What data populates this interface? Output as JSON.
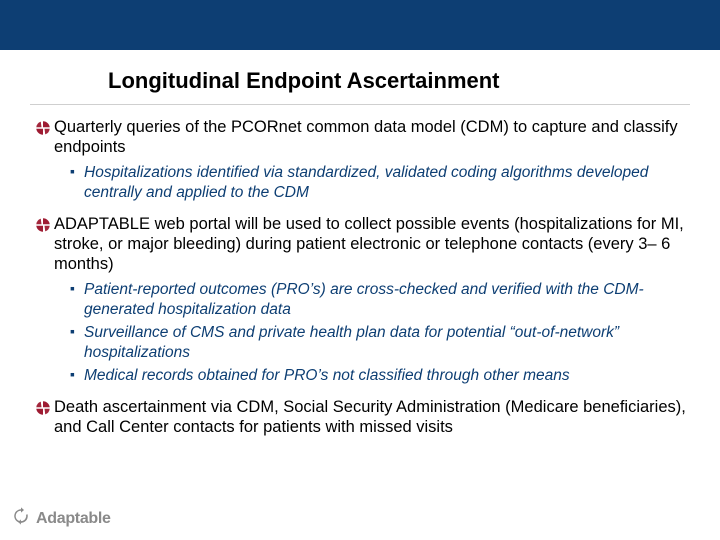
{
  "colors": {
    "band": "#0d3e73",
    "sub_text": "#0d3e73",
    "bullet_red": "#9e1b32",
    "footer_gray": "#8a8a8a",
    "background": "#ffffff",
    "divider": "#cfcfcf"
  },
  "title": "Longitudinal Endpoint Ascertainment",
  "bullets": [
    {
      "text": "Quarterly queries of the PCORnet common data model (CDM) to capture and classify endpoints",
      "subs": [
        "Hospitalizations identified via standardized, validated coding algorithms developed centrally and applied to the CDM"
      ]
    },
    {
      "text": "ADAPTABLE web portal will be used to collect possible events (hospitalizations for MI, stroke, or major bleeding) during patient electronic or telephone contacts (every 3– 6 months)",
      "subs": [
        "Patient-reported outcomes (PRO’s) are cross-checked and verified with the CDM-generated hospitalization data",
        "Surveillance of CMS and private health plan data for potential “out-of-network” hospitalizations",
        "Medical records obtained for PRO’s not classified through other means"
      ]
    },
    {
      "text": "Death ascertainment via CDM, Social Security Administration (Medicare beneficiaries), and Call Center contacts for patients with missed visits",
      "subs": []
    }
  ],
  "footer": {
    "brand": "Adaptable"
  },
  "typography": {
    "title_fontsize": 22,
    "main_fontsize": 16.5,
    "sub_fontsize": 15.5,
    "footer_fontsize": 16
  }
}
